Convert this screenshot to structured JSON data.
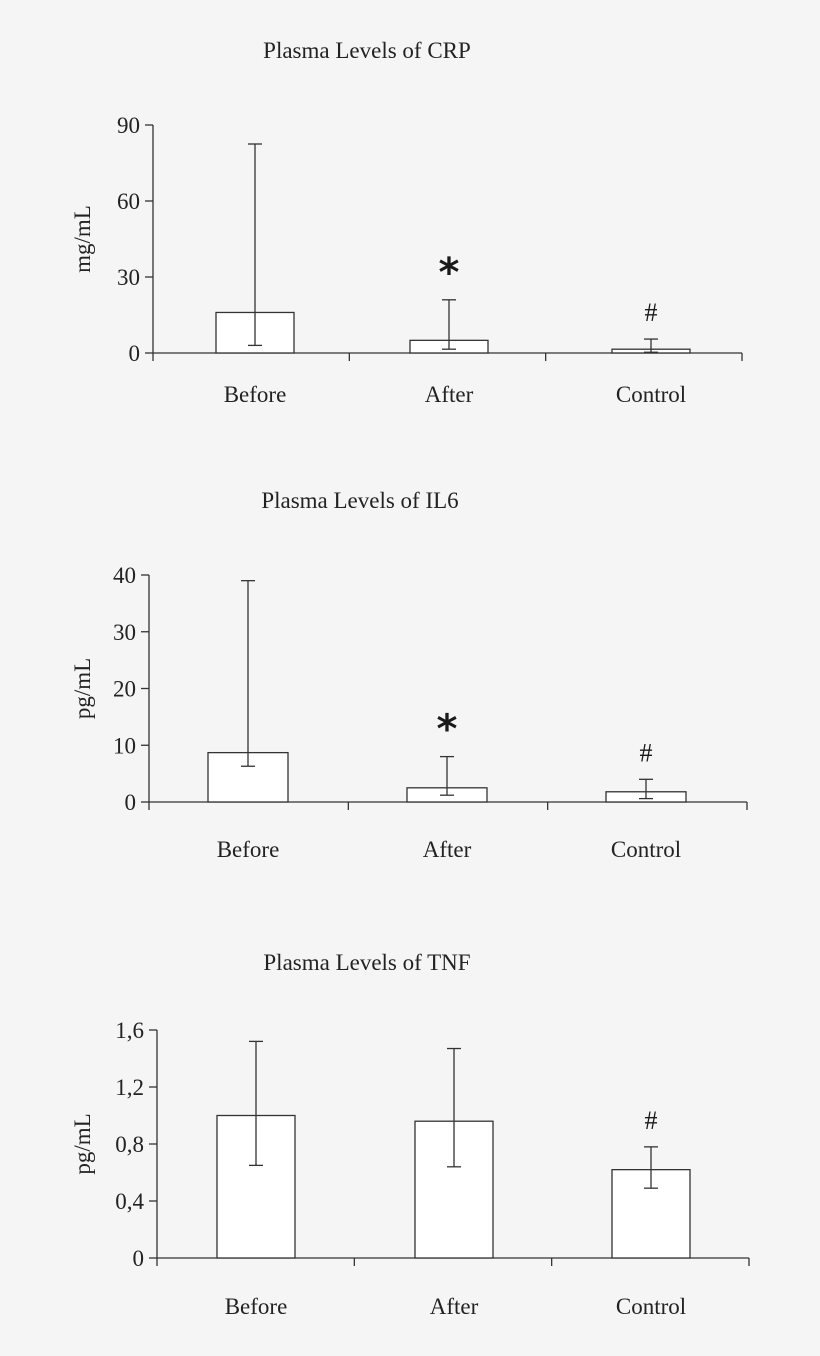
{
  "chart_data": [
    {
      "type": "bar",
      "title": "Plasma Levels of CRP",
      "xlabel": "",
      "ylabel": "mg/mL",
      "ylim": [
        0,
        90
      ],
      "yticks": [
        0,
        30,
        60,
        90
      ],
      "ytick_labels": [
        "0",
        "30",
        "60",
        "90"
      ],
      "categories": [
        "Before",
        "After",
        "Control"
      ],
      "values": [
        16,
        5,
        1.5
      ],
      "error_low": [
        3,
        1.5,
        0.3
      ],
      "error_high": [
        82.5,
        21,
        5.5
      ],
      "annotations": [
        "",
        "*",
        "#"
      ],
      "grid": false
    },
    {
      "type": "bar",
      "title": "Plasma Levels of IL6",
      "xlabel": "",
      "ylabel": "pg/mL",
      "ylim": [
        0,
        40
      ],
      "yticks": [
        0,
        10,
        20,
        30,
        40
      ],
      "ytick_labels": [
        "0",
        "10",
        "20",
        "30",
        "40"
      ],
      "categories": [
        "Before",
        "After",
        "Control"
      ],
      "values": [
        8.7,
        2.5,
        1.8
      ],
      "error_low": [
        6.3,
        1.2,
        0.6
      ],
      "error_high": [
        39,
        8,
        4
      ],
      "annotations": [
        "",
        "*",
        "#"
      ],
      "grid": false
    },
    {
      "type": "bar",
      "title": "Plasma Levels of TNF",
      "xlabel": "",
      "ylabel": "pg/mL",
      "ylim": [
        0,
        1.6
      ],
      "yticks": [
        0,
        0.4,
        0.8,
        1.2,
        1.6
      ],
      "ytick_labels": [
        "0",
        "0,4",
        "0,8",
        "1,2",
        "1,6"
      ],
      "categories": [
        "Before",
        "After",
        "Control"
      ],
      "values": [
        1.0,
        0.96,
        0.62
      ],
      "error_low": [
        0.65,
        0.64,
        0.49
      ],
      "error_high": [
        1.52,
        1.47,
        0.78
      ],
      "annotations": [
        "",
        "",
        "#"
      ],
      "grid": false
    }
  ]
}
